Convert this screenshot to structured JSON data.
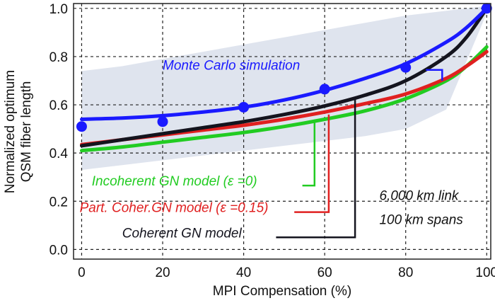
{
  "chart_data": {
    "type": "line",
    "title": "",
    "xlabel": "MPI Compensation (%)",
    "ylabel": [
      "Normalized optimum",
      "QSM fiber length"
    ],
    "xlim": [
      -2,
      101
    ],
    "ylim": [
      -0.04,
      1.02
    ],
    "x_ticks": [
      0,
      20,
      40,
      60,
      80,
      100
    ],
    "y_ticks": [
      0.0,
      0.2,
      0.4,
      0.6,
      0.8,
      1.0
    ],
    "x_tick_labels": [
      "0",
      "20",
      "40",
      "60",
      "80",
      "100"
    ],
    "y_tick_labels": [
      "0.0",
      "0.2",
      "0.4",
      "0.6",
      "0.8",
      "1.0"
    ],
    "grid": true,
    "band": {
      "color": "#dfe4ee",
      "x": [
        0,
        10,
        20,
        30,
        40,
        50,
        60,
        70,
        80,
        90,
        100
      ],
      "lower": [
        0.33,
        0.35,
        0.37,
        0.39,
        0.41,
        0.43,
        0.45,
        0.47,
        0.5,
        0.58,
        0.98
      ],
      "upper": [
        0.74,
        0.76,
        0.79,
        0.82,
        0.85,
        0.88,
        0.91,
        0.94,
        0.97,
        0.99,
        1.01
      ]
    },
    "series": [
      {
        "name": "Monte Carlo simulation",
        "color": "#1a1aff",
        "width": 5,
        "x": [
          0,
          10,
          20,
          30,
          40,
          50,
          60,
          70,
          80,
          90,
          95,
          100
        ],
        "y": [
          0.54,
          0.545,
          0.555,
          0.57,
          0.59,
          0.62,
          0.66,
          0.71,
          0.77,
          0.86,
          0.92,
          1.0
        ],
        "points_x": [
          0,
          20,
          40,
          60,
          80,
          100
        ],
        "points_y": [
          0.51,
          0.53,
          0.59,
          0.665,
          0.755,
          1.0
        ]
      },
      {
        "name": "Coherent GN  model",
        "color": "#14141e",
        "width": 5,
        "x": [
          0,
          10,
          20,
          30,
          40,
          50,
          60,
          70,
          80,
          90,
          95,
          100
        ],
        "y": [
          0.43,
          0.455,
          0.48,
          0.505,
          0.53,
          0.56,
          0.595,
          0.64,
          0.7,
          0.8,
          0.88,
          1.0
        ]
      },
      {
        "name": "Part. Coher.GN model (ε =0.15)",
        "color": "#e02020",
        "width": 5,
        "x": [
          0,
          10,
          20,
          30,
          40,
          50,
          60,
          70,
          80,
          90,
          95,
          100
        ],
        "y": [
          0.435,
          0.455,
          0.475,
          0.495,
          0.515,
          0.54,
          0.57,
          0.605,
          0.645,
          0.71,
          0.76,
          0.82
        ]
      },
      {
        "name": "Incoherent GN  model (ε =0)",
        "color": "#22cc22",
        "width": 5,
        "x": [
          0,
          10,
          20,
          30,
          40,
          50,
          60,
          70,
          80,
          90,
          95,
          100
        ],
        "y": [
          0.41,
          0.425,
          0.445,
          0.465,
          0.485,
          0.51,
          0.54,
          0.575,
          0.625,
          0.7,
          0.76,
          0.84
        ]
      }
    ],
    "annotations": [
      {
        "text": "Monte Carlo simulation",
        "color": "#1a1aff",
        "x": 20,
        "y": 0.745
      },
      {
        "text": "Incoherent GN  model (ε =0)",
        "color": "#22cc22",
        "x": 2.5,
        "y": 0.265
      },
      {
        "text": "Part. Coher.GN model (ε =0.15)",
        "color": "#e02020",
        "x": -0.5,
        "y": 0.155
      },
      {
        "text": "Coherent GN  model",
        "color": "#14141e",
        "x": 10,
        "y": 0.05
      },
      {
        "text": "6,000 km link",
        "color": "#111111",
        "x": 73.5,
        "y": 0.205
      },
      {
        "text": "100 km spans",
        "color": "#111111",
        "x": 73.5,
        "y": 0.105
      }
    ]
  }
}
